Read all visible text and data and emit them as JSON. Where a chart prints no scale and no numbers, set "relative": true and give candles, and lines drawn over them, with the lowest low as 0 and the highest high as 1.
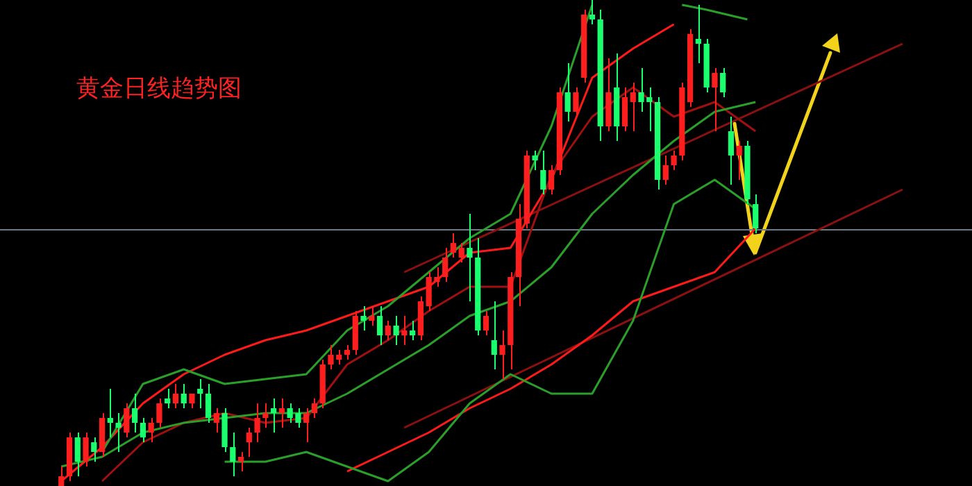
{
  "chart_data": {
    "type": "candlestick",
    "title": "黄金日线趋势图",
    "relative": true,
    "legend": false,
    "tick_labels": false,
    "marker": "none",
    "line_style": "solid",
    "categories": [
      null,
      null,
      null,
      null,
      null,
      null,
      null,
      null,
      null,
      null,
      null,
      null,
      null,
      null,
      null,
      null,
      null,
      null,
      null,
      null,
      null,
      null,
      null,
      null,
      null,
      null,
      null,
      null,
      null,
      null,
      null,
      null,
      null,
      null,
      null,
      null,
      null,
      null,
      null,
      null,
      null,
      null,
      null,
      null,
      null,
      null,
      null,
      null,
      null,
      null,
      null,
      null,
      null,
      null,
      null,
      null,
      null,
      null,
      null,
      null,
      null,
      null,
      null,
      null,
      null,
      null,
      null,
      null,
      null,
      null,
      null,
      null,
      null,
      null,
      null,
      null,
      null,
      null,
      null,
      null,
      null,
      null,
      null,
      null,
      null,
      null,
      null,
      null,
      null,
      null,
      null,
      null,
      null,
      null,
      null,
      null,
      null,
      null,
      null,
      null,
      null,
      null,
      null,
      null,
      null,
      null,
      null,
      null,
      null,
      null,
      null,
      null,
      null,
      null,
      null,
      null,
      null,
      null,
      null
    ],
    "ohlc": [
      null,
      null,
      null,
      null,
      null,
      null,
      null,
      [
        0,
        0.04,
        0,
        0.02
      ],
      [
        0.02,
        0.11,
        0.01,
        0.1
      ],
      [
        0.1,
        0.11,
        0.02,
        0.05
      ],
      [
        0.05,
        0.11,
        0.04,
        0.1
      ],
      [
        0.09,
        0.1,
        0.05,
        0.07
      ],
      [
        0.07,
        0.15,
        0.06,
        0.14
      ],
      [
        0.14,
        0.2,
        0.1,
        0.13
      ],
      [
        0.13,
        0.15,
        0.07,
        0.12
      ],
      [
        0.11,
        0.17,
        0.1,
        0.16
      ],
      [
        0.16,
        0.19,
        0.11,
        0.13
      ],
      [
        0.13,
        0.14,
        0.09,
        0.1
      ],
      [
        0.11,
        0.14,
        0.09,
        0.13
      ],
      [
        0.13,
        0.18,
        0.12,
        0.17
      ],
      [
        0.18,
        0.2,
        0.16,
        0.17
      ],
      [
        0.17,
        0.21,
        0.16,
        0.19
      ],
      [
        0.19,
        0.21,
        0.16,
        0.17
      ],
      [
        0.17,
        0.19,
        0.16,
        0.19
      ],
      [
        0.2,
        0.22,
        0.16,
        0.19
      ],
      [
        0.19,
        0.21,
        0.13,
        0.14
      ],
      [
        0.13,
        0.16,
        0.11,
        0.15
      ],
      [
        0.15,
        0.16,
        0.07,
        0.08
      ],
      [
        0.08,
        0.11,
        0.02,
        0.05
      ],
      [
        0.05,
        0.07,
        0.03,
        0.06
      ],
      [
        0.09,
        0.12,
        0.06,
        0.11
      ],
      [
        0.11,
        0.17,
        0.09,
        0.14
      ],
      [
        0.14,
        0.17,
        0.12,
        0.15
      ],
      [
        0.16,
        0.18,
        0.11,
        0.15
      ],
      [
        0.15,
        0.18,
        0.12,
        0.16
      ],
      [
        0.16,
        0.17,
        0.13,
        0.14
      ],
      [
        0.15,
        0.16,
        0.12,
        0.13
      ],
      [
        0.13,
        0.16,
        0.09,
        0.15
      ],
      [
        0.15,
        0.18,
        0.14,
        0.17
      ],
      [
        0.17,
        0.26,
        0.16,
        0.25
      ],
      [
        0.25,
        0.29,
        0.24,
        0.27
      ],
      [
        0.26,
        0.28,
        0.25,
        0.27
      ],
      [
        0.27,
        0.29,
        0.26,
        0.28
      ],
      [
        0.28,
        0.36,
        0.27,
        0.35
      ],
      [
        0.35,
        0.37,
        0.32,
        0.34
      ],
      [
        0.34,
        0.37,
        0.33,
        0.35
      ],
      [
        0.35,
        0.37,
        0.29,
        0.31
      ],
      [
        0.31,
        0.34,
        0.3,
        0.33
      ],
      [
        0.33,
        0.35,
        0.29,
        0.31
      ],
      [
        0.31,
        0.35,
        0.29,
        0.32
      ],
      [
        0.32,
        0.34,
        0.3,
        0.31
      ],
      [
        0.31,
        0.39,
        0.3,
        0.38
      ],
      [
        0.37,
        0.44,
        0.36,
        0.43
      ],
      [
        0.42,
        0.45,
        0.41,
        0.43
      ],
      [
        0.43,
        0.49,
        0.42,
        0.47
      ],
      [
        0.48,
        0.52,
        0.47,
        0.5
      ],
      [
        0.47,
        0.5,
        0.46,
        0.49
      ],
      [
        0.49,
        0.56,
        0.38,
        0.47
      ],
      [
        0.47,
        0.51,
        0.31,
        0.32
      ],
      [
        0.32,
        0.36,
        0.31,
        0.35
      ],
      [
        0.3,
        0.38,
        0.24,
        0.27
      ],
      [
        0.27,
        0.32,
        0.22,
        0.29
      ],
      [
        0.29,
        0.44,
        0.24,
        0.43
      ],
      [
        0.43,
        0.58,
        0.37,
        0.55
      ],
      [
        0.54,
        0.69,
        0.53,
        0.68
      ],
      [
        0.68,
        0.69,
        0.65,
        0.67
      ],
      [
        0.65,
        0.69,
        0.6,
        0.61
      ],
      [
        0.61,
        0.66,
        0.6,
        0.65
      ],
      [
        0.65,
        0.82,
        0.64,
        0.81
      ],
      [
        0.81,
        0.87,
        0.75,
        0.77
      ],
      [
        0.77,
        0.82,
        0.76,
        0.81
      ],
      [
        0.84,
        0.98,
        0.83,
        0.97
      ],
      [
        0.97,
        1,
        0.95,
        0.96
      ],
      [
        0.96,
        0.98,
        0.71,
        0.74
      ],
      [
        0.74,
        0.88,
        0.73,
        0.81
      ],
      [
        0.82,
        0.89,
        0.71,
        0.74
      ],
      [
        0.74,
        0.82,
        0.73,
        0.8
      ],
      [
        0.79,
        0.83,
        0.73,
        0.81
      ],
      [
        0.81,
        0.86,
        0.77,
        0.79
      ],
      [
        0.8,
        0.82,
        0.73,
        0.79
      ],
      [
        0.79,
        0.8,
        0.61,
        0.63
      ],
      [
        0.63,
        0.68,
        0.62,
        0.66
      ],
      [
        0.66,
        0.69,
        0.65,
        0.68
      ],
      [
        0.68,
        0.83,
        0.67,
        0.82
      ],
      [
        0.79,
        0.94,
        0.78,
        0.93
      ],
      [
        0.92,
        0.99,
        0.87,
        0.91
      ],
      [
        0.91,
        0.92,
        0.81,
        0.82
      ],
      [
        0.82,
        0.86,
        0.73,
        0.85
      ],
      [
        0.85,
        0.86,
        0.8,
        0.81
      ],
      [
        0.73,
        0.76,
        0.62,
        0.68
      ],
      [
        0.68,
        0.71,
        0.63,
        0.7
      ],
      [
        0.7,
        0.71,
        0.58,
        0.59
      ],
      [
        0.58,
        0.6,
        0.52,
        0.53
      ],
      null,
      null,
      null,
      null,
      null,
      null,
      null,
      null,
      null,
      null,
      null,
      null,
      null,
      null,
      null,
      null,
      null,
      null,
      null,
      null,
      null,
      null,
      null,
      null,
      null,
      null
    ],
    "colors": [
      null,
      null,
      null,
      null,
      null,
      null,
      null,
      "#ff1e1e",
      "#ff1e1e",
      "#1aff6e",
      "#ff1e1e",
      "#1aff6e",
      "#ff1e1e",
      "#1aff6e",
      "#1aff6e",
      "#ff1e1e",
      "#1aff6e",
      "#1aff6e",
      "#ff1e1e",
      "#ff1e1e",
      "#1aff6e",
      "#ff1e1e",
      "#1aff6e",
      "#ff1e1e",
      "#1aff6e",
      "#1aff6e",
      "#ff1e1e",
      "#1aff6e",
      "#1aff6e",
      "#ff1e1e",
      "#ff1e1e",
      "#ff1e1e",
      "#ff1e1e",
      "#1aff6e",
      "#ff1e1e",
      "#1aff6e",
      "#1aff6e",
      "#ff1e1e",
      "#ff1e1e",
      "#ff1e1e",
      "#ff1e1e",
      "#ff1e1e",
      "#ff1e1e",
      "#ff1e1e",
      "#1aff6e",
      "#ff1e1e",
      "#1aff6e",
      "#ff1e1e",
      "#1aff6e",
      "#ff1e1e",
      "#1aff6e",
      "#ff1e1e",
      "#ff1e1e",
      "#ff1e1e",
      "#ff1e1e",
      "#ff1e1e",
      "#ff1e1e",
      "#1aff6e",
      "#1aff6e",
      "#ff1e1e",
      "#1aff6e",
      "#ff1e1e",
      "#ff1e1e",
      "#ff1e1e",
      "#ff1e1e",
      "#1aff6e",
      "#1aff6e",
      "#ff1e1e",
      "#ff1e1e",
      "#1aff6e",
      "#ff1e1e",
      "#ff1e1e",
      "#1aff6e",
      "#1aff6e",
      "#ff1e1e",
      "#1aff6e",
      "#ff1e1e",
      "#ff1e1e",
      "#1aff6e",
      "#1aff6e",
      "#1aff6e",
      "#ff1e1e",
      "#ff1e1e",
      "#ff1e1e",
      "#ff1e1e",
      "#1aff6e",
      "#1aff6e",
      "#ff1e1e",
      "#1aff6e",
      "#1aff6e",
      "#ff1e1e",
      "#1aff6e",
      "#1aff6e",
      null,
      null,
      null,
      null,
      null,
      null,
      null,
      null,
      null,
      null,
      null,
      null,
      null,
      null,
      null,
      null,
      null,
      null,
      null,
      null,
      null,
      null,
      null,
      null,
      null,
      null
    ],
    "ref_lines": [
      {
        "axis": "y",
        "value": 0.53,
        "color": "#6c7a89"
      }
    ],
    "series": [
      {
        "type": "line",
        "color": "#2aa02a",
        "values": [
          null,
          null,
          null,
          null,
          null,
          null,
          null,
          null,
          null,
          null,
          null,
          null,
          0.07,
          null,
          null,
          null,
          null,
          0.21,
          null,
          null,
          null,
          null,
          0.24,
          null,
          null,
          null,
          null,
          0.21,
          null,
          null,
          null,
          null,
          0.22,
          null,
          null,
          null,
          null,
          0.23,
          null,
          null,
          null,
          null,
          0.32,
          null,
          null,
          null,
          null,
          0.37,
          null,
          null,
          null,
          null,
          0.44,
          null,
          null,
          null,
          null,
          0.51,
          null,
          null,
          null,
          null,
          0.56,
          null,
          null,
          null,
          null,
          0.74,
          null,
          null,
          null,
          null,
          0.99,
          null,
          null,
          null,
          null,
          null,
          null,
          null,
          null,
          null,
          null,
          null,
          null,
          null,
          null,
          null,
          null,
          null,
          null,
          null,
          null,
          null,
          null,
          null,
          null,
          null,
          null,
          null,
          null,
          null,
          null,
          null,
          null,
          null,
          null,
          null,
          null,
          null,
          null,
          null,
          null,
          null,
          null,
          null,
          null,
          null,
          null
        ]
      },
      {
        "type": "line",
        "color": "#2aa02a",
        "values": [
          null,
          null,
          null,
          null,
          null,
          null,
          null,
          null,
          null,
          null,
          null,
          null,
          null,
          null,
          null,
          null,
          null,
          null,
          null,
          null,
          null,
          null,
          null,
          null,
          null,
          null,
          null,
          null,
          null,
          null,
          null,
          null,
          null,
          null,
          null,
          null,
          null,
          null,
          null,
          null,
          null,
          null,
          null,
          null,
          null,
          null,
          null,
          null,
          null,
          null,
          null,
          null,
          null,
          null,
          null,
          null,
          null,
          null,
          null,
          null,
          null,
          null,
          null,
          null,
          null,
          null,
          null,
          null,
          null,
          null,
          null,
          null,
          null,
          null,
          null,
          null,
          null,
          null,
          null,
          null,
          null,
          null,
          null,
          0.99,
          null,
          null,
          0.98,
          null,
          null,
          null,
          null,
          0.96,
          null,
          null,
          null,
          null,
          null,
          null,
          null,
          null,
          null,
          null,
          null,
          null,
          null,
          null,
          null,
          null,
          null,
          null,
          null,
          null,
          null,
          null,
          null,
          null,
          null,
          null,
          null
        ]
      },
      {
        "type": "line",
        "color": "#2aa02a",
        "values": [
          null,
          null,
          null,
          null,
          null,
          null,
          null,
          0.04,
          null,
          null,
          null,
          null,
          0.06,
          null,
          null,
          null,
          null,
          0.11,
          null,
          null,
          null,
          null,
          0.13,
          null,
          null,
          null,
          null,
          0.14,
          null,
          null,
          null,
          null,
          0.15,
          null,
          null,
          null,
          null,
          0.15,
          null,
          null,
          null,
          null,
          0.19,
          null,
          null,
          null,
          null,
          0.24,
          null,
          null,
          null,
          null,
          0.29,
          null,
          null,
          null,
          null,
          0.35,
          null,
          null,
          null,
          null,
          0.38,
          null,
          null,
          null,
          null,
          0.45,
          null,
          null,
          null,
          null,
          0.56,
          null,
          null,
          null,
          null,
          0.64,
          null,
          null,
          null,
          null,
          0.71,
          null,
          null,
          null,
          null,
          0.77,
          null,
          null,
          null,
          null,
          0.79,
          null,
          null,
          null,
          null,
          null,
          null,
          null,
          null,
          null,
          null,
          null,
          null,
          null,
          null,
          null,
          null,
          null,
          null,
          null,
          null,
          null,
          null,
          null,
          null,
          null,
          null
        ]
      },
      {
        "type": "line",
        "color": "#2aa02a",
        "values": [
          null,
          null,
          null,
          null,
          null,
          null,
          null,
          null,
          null,
          null,
          null,
          null,
          null,
          null,
          null,
          null,
          null,
          null,
          null,
          null,
          null,
          null,
          null,
          null,
          null,
          null,
          null,
          0.05,
          null,
          null,
          null,
          null,
          0.05,
          null,
          null,
          null,
          null,
          0.07,
          null,
          null,
          null,
          null,
          0.04,
          null,
          null,
          null,
          null,
          0.01,
          null,
          null,
          null,
          null,
          0.07,
          null,
          null,
          null,
          null,
          0.17,
          null,
          null,
          null,
          null,
          0.23,
          null,
          null,
          null,
          null,
          0.19,
          null,
          null,
          null,
          null,
          0.19,
          null,
          null,
          null,
          null,
          0.34,
          null,
          null,
          null,
          null,
          0.58,
          null,
          null,
          null,
          null,
          0.63,
          null,
          null,
          null,
          null,
          0.57,
          null,
          null,
          null,
          null,
          null,
          null,
          null,
          null,
          null,
          null,
          null,
          null,
          null,
          null,
          null,
          null,
          null,
          null,
          null,
          null,
          null,
          null,
          null,
          null,
          null,
          null
        ]
      },
      {
        "type": "line",
        "color": "#a01010",
        "values": [
          null,
          null,
          null,
          null,
          null,
          null,
          null,
          null,
          null,
          null,
          null,
          null,
          0.01,
          null,
          null,
          null,
          null,
          0.09,
          null,
          null,
          null,
          null,
          0.13,
          null,
          null,
          null,
          null,
          0.15,
          null,
          null,
          null,
          null,
          0.13,
          null,
          null,
          null,
          null,
          0.14,
          null,
          null,
          null,
          null,
          0.25,
          null,
          null,
          null,
          null,
          0.3,
          null,
          null,
          null,
          null,
          0.36,
          null,
          null,
          null,
          null,
          0.41,
          null,
          null,
          null,
          null,
          0.41,
          null,
          null,
          null,
          null,
          0.64,
          null,
          null,
          null,
          null,
          0.76,
          null,
          null,
          null,
          null,
          0.82,
          null,
          null,
          null,
          null,
          0.76,
          null,
          null,
          null,
          null,
          0.79,
          null,
          null,
          null,
          null,
          0.73,
          null,
          null,
          null,
          null,
          null,
          null,
          null,
          null,
          null,
          null,
          null,
          null,
          null,
          null,
          null,
          null,
          null,
          null,
          null,
          null,
          null,
          null,
          null,
          null,
          null,
          null
        ]
      },
      {
        "type": "line",
        "color": "#ff1a1a",
        "values": [
          null,
          null,
          null,
          null,
          null,
          null,
          null,
          0.01,
          null,
          null,
          null,
          null,
          0.08,
          null,
          null,
          null,
          null,
          0.17,
          null,
          null,
          null,
          null,
          0.23,
          null,
          null,
          null,
          null,
          0.27,
          null,
          null,
          null,
          null,
          0.3,
          null,
          null,
          null,
          null,
          0.32,
          null,
          null,
          null,
          null,
          0.35,
          null,
          null,
          null,
          null,
          0.38,
          null,
          null,
          null,
          null,
          0.41,
          null,
          null,
          null,
          null,
          0.48,
          null,
          null,
          null,
          null,
          0.49,
          null,
          null,
          null,
          null,
          0.63,
          null,
          null,
          null,
          null,
          0.84,
          null,
          null,
          null,
          null,
          0.9,
          null,
          null,
          null,
          null,
          0.95,
          null,
          null,
          null,
          null,
          null,
          null,
          null,
          null,
          null,
          null,
          null,
          null,
          null,
          null,
          null,
          null,
          null,
          null,
          null,
          null,
          null,
          null,
          null,
          null,
          null,
          null,
          null,
          null,
          null,
          null,
          null,
          null,
          null,
          null,
          null,
          null
        ]
      },
      {
        "type": "line",
        "color": "#ff1a1a",
        "values": [
          null,
          null,
          null,
          null,
          null,
          null,
          null,
          null,
          null,
          null,
          null,
          null,
          null,
          null,
          null,
          null,
          null,
          null,
          null,
          null,
          null,
          null,
          null,
          null,
          null,
          null,
          null,
          null,
          null,
          null,
          null,
          null,
          null,
          null,
          null,
          null,
          null,
          null,
          null,
          null,
          null,
          null,
          0.03,
          null,
          null,
          null,
          null,
          0.07,
          null,
          null,
          null,
          null,
          0.11,
          null,
          null,
          null,
          null,
          0.16,
          null,
          null,
          null,
          null,
          0.2,
          null,
          null,
          null,
          null,
          0.25,
          null,
          null,
          null,
          null,
          0.31,
          null,
          null,
          null,
          null,
          0.38,
          null,
          null,
          null,
          null,
          0.41,
          null,
          null,
          null,
          null,
          0.44,
          null,
          null,
          null,
          null,
          0.53,
          null,
          null,
          null,
          null,
          null,
          null,
          null,
          null,
          null,
          null,
          null,
          null,
          null,
          null,
          null,
          null,
          null,
          null,
          null,
          null,
          null,
          null,
          null,
          null,
          null,
          null
        ]
      },
      {
        "type": "line",
        "color": "#8b1010",
        "values": [
          null,
          null,
          null,
          null,
          null,
          null,
          null,
          null,
          null,
          null,
          null,
          null,
          null,
          null,
          null,
          null,
          null,
          null,
          null,
          null,
          null,
          null,
          null,
          null,
          null,
          null,
          null,
          null,
          null,
          null,
          null,
          null,
          null,
          null,
          null,
          null,
          null,
          null,
          null,
          null,
          null,
          null,
          null,
          null,
          null,
          null,
          null,
          null,
          null,
          0.44,
          null,
          null,
          null,
          null,
          null,
          null,
          null,
          null,
          null,
          null,
          null,
          null,
          null,
          null,
          null,
          null,
          null,
          null,
          null,
          null,
          null,
          null,
          null,
          null,
          null,
          null,
          null,
          null,
          null,
          null,
          null,
          null,
          null,
          null,
          null,
          null,
          null,
          null,
          null,
          null,
          null,
          null,
          null,
          null,
          null,
          null,
          null,
          null,
          null,
          null,
          null,
          null,
          null,
          null,
          null,
          null,
          null,
          null,
          null,
          null,
          0.91,
          null,
          null,
          null,
          null,
          null,
          null,
          null,
          null
        ]
      },
      {
        "type": "line",
        "color": "#8b1010",
        "values": [
          null,
          null,
          null,
          null,
          null,
          null,
          null,
          null,
          null,
          null,
          null,
          null,
          null,
          null,
          null,
          null,
          null,
          null,
          null,
          null,
          null,
          null,
          null,
          null,
          null,
          null,
          null,
          null,
          null,
          null,
          null,
          null,
          null,
          null,
          null,
          null,
          null,
          null,
          null,
          null,
          null,
          null,
          null,
          null,
          null,
          null,
          null,
          null,
          null,
          0.12,
          null,
          null,
          null,
          null,
          null,
          null,
          null,
          null,
          null,
          null,
          null,
          null,
          null,
          null,
          null,
          null,
          null,
          null,
          null,
          null,
          null,
          null,
          null,
          null,
          null,
          null,
          null,
          null,
          null,
          null,
          null,
          null,
          null,
          null,
          null,
          null,
          null,
          null,
          null,
          null,
          null,
          null,
          null,
          null,
          null,
          null,
          null,
          null,
          null,
          null,
          null,
          null,
          null,
          null,
          null,
          null,
          null,
          null,
          null,
          null,
          0.61,
          null,
          null,
          null,
          null,
          null,
          null,
          null,
          null
        ]
      }
    ]
  }
}
